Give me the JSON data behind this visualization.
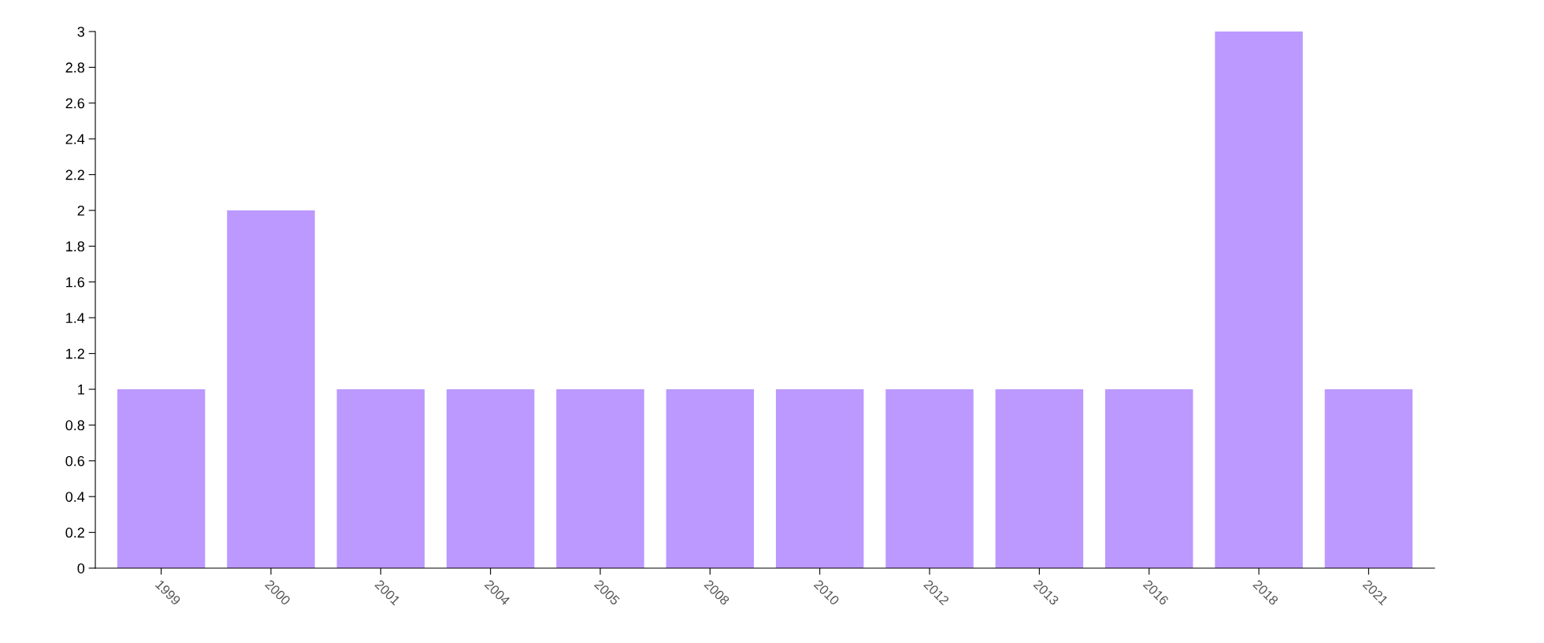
{
  "chart_data": {
    "type": "bar",
    "categories": [
      "1999",
      "2000",
      "2001",
      "2004",
      "2005",
      "2008",
      "2010",
      "2012",
      "2013",
      "2016",
      "2018",
      "2021"
    ],
    "values": [
      1,
      2,
      1,
      1,
      1,
      1,
      1,
      1,
      1,
      1,
      3,
      1
    ],
    "color": "#bb99ff",
    "ylim": [
      0,
      3
    ],
    "yticks": [
      0,
      0.2,
      0.4,
      0.6,
      0.8,
      1,
      1.2,
      1.4,
      1.6,
      1.8,
      2,
      2.2,
      2.4,
      2.6,
      2.8,
      3
    ],
    "grid": false
  }
}
